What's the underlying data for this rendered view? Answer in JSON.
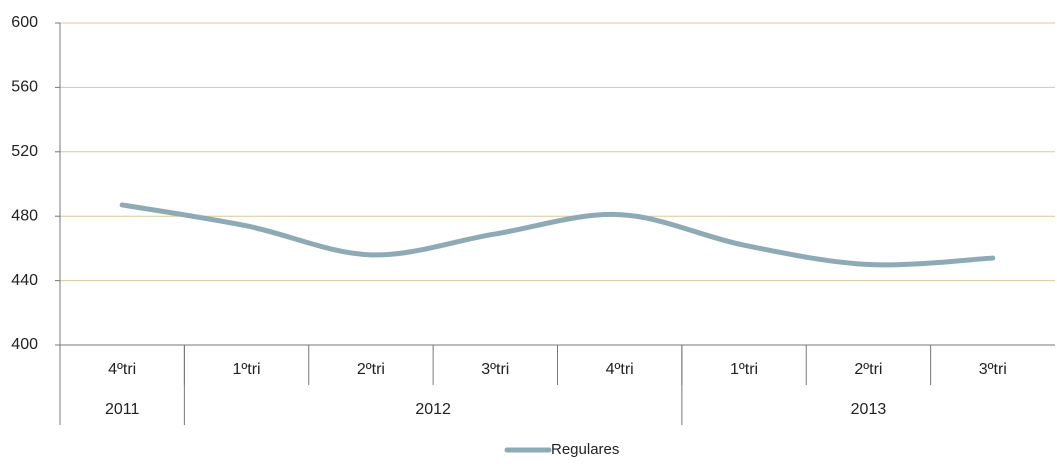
{
  "chart_data": {
    "type": "line",
    "categories": [
      "4ºtri",
      "1ºtri",
      "2ºtri",
      "3ºtri",
      "4ºtri",
      "1ºtri",
      "2ºtri",
      "3ºtri"
    ],
    "groups": [
      {
        "label": "2011",
        "count": 1
      },
      {
        "label": "2012",
        "count": 4
      },
      {
        "label": "2013",
        "count": 3
      }
    ],
    "series": [
      {
        "name": "Regulares",
        "color": "#8eabb5",
        "values": [
          487,
          474,
          456,
          469,
          481,
          462,
          450,
          454
        ]
      }
    ],
    "ylim": [
      400,
      600
    ],
    "yticks": [
      400,
      440,
      480,
      520,
      560,
      600
    ],
    "grid": true,
    "grid_color": "#d8c89f",
    "legend": "bottom"
  }
}
